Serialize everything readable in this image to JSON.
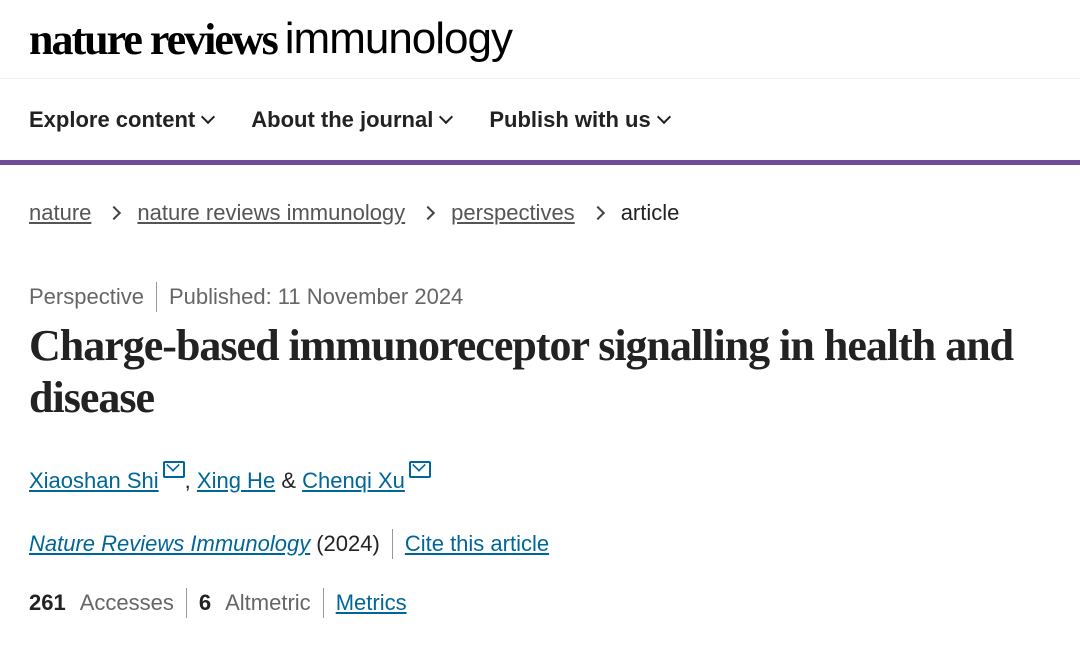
{
  "header": {
    "logo_bold": "nature reviews",
    "logo_light": "immunology"
  },
  "nav": [
    {
      "label": "Explore content"
    },
    {
      "label": "About the journal"
    },
    {
      "label": "Publish with us"
    }
  ],
  "breadcrumb": [
    {
      "label": "nature"
    },
    {
      "label": "nature reviews immunology"
    },
    {
      "label": "perspectives"
    },
    {
      "label": "article"
    }
  ],
  "article": {
    "type": "Perspective",
    "published": "Published: 11 November 2024",
    "title": "Charge-based immunoreceptor signalling in health and disease",
    "authors": [
      {
        "name": "Xiaoshan Shi"
      },
      {
        "name": "Xing He"
      },
      {
        "name": "Chenqi Xu"
      }
    ],
    "author_sep_comma": ",",
    "author_sep_amp": "&",
    "journal": "Nature Reviews Immunology",
    "year": "(2024)",
    "cite_label": "Cite this article",
    "accesses_count": "261",
    "accesses_label": "Accesses",
    "altmetric_count": "6",
    "altmetric_label": "Altmetric",
    "metrics_label": "Metrics"
  },
  "colors": {
    "accent": "#6f4b9a",
    "link": "#006699"
  }
}
